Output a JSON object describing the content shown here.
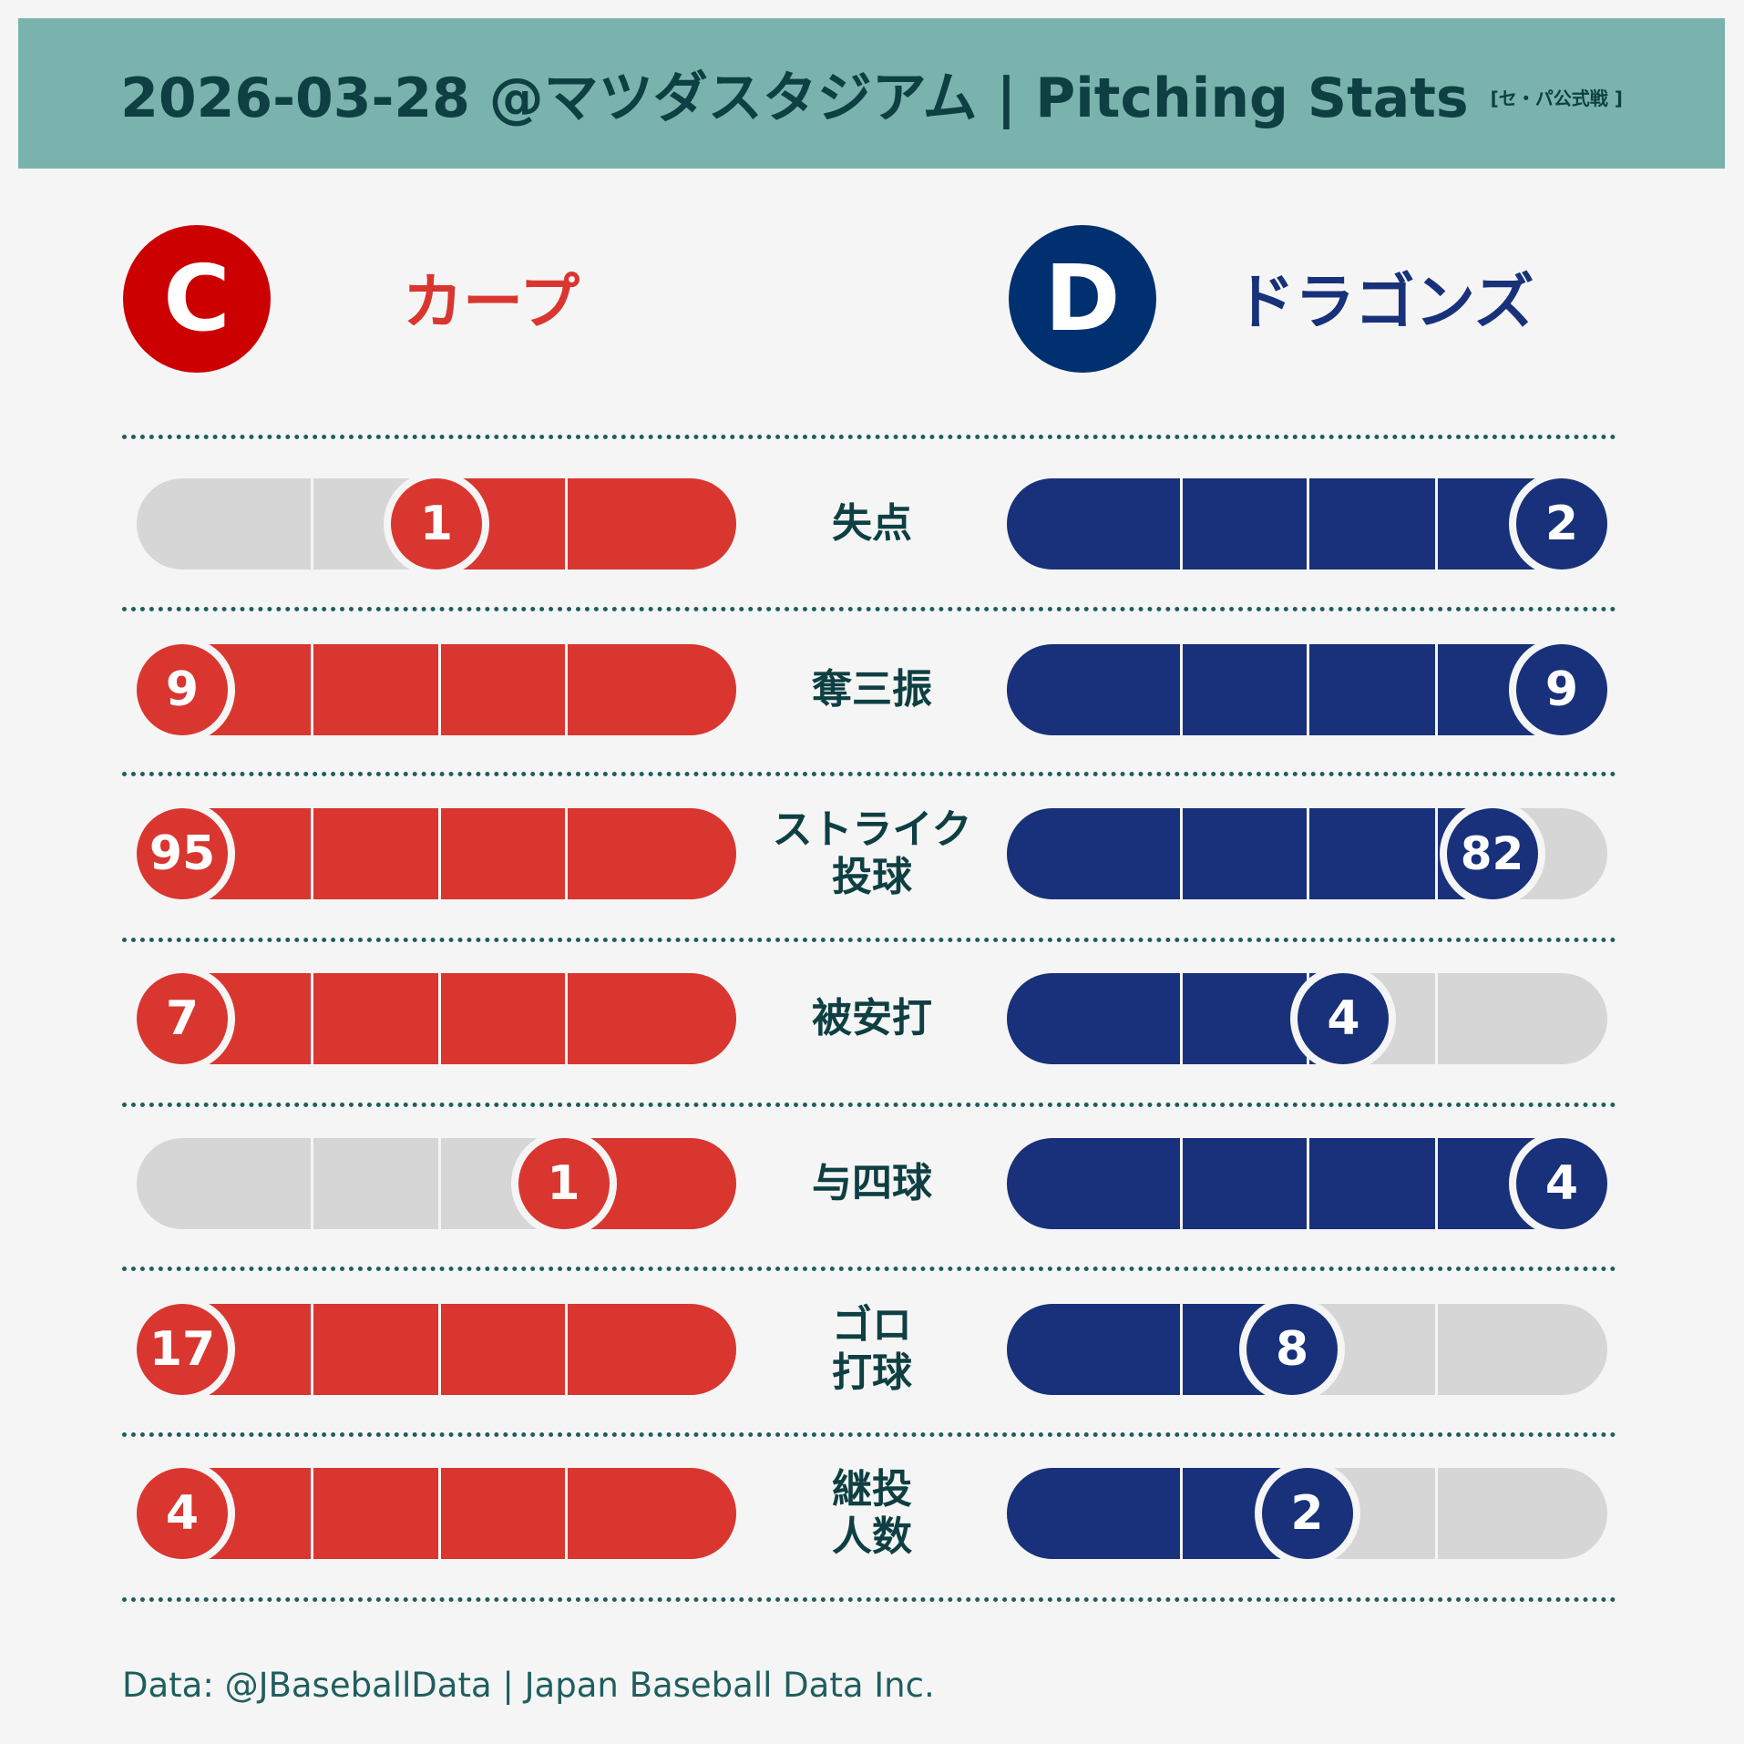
{
  "header": {
    "title": "2026-03-28  @マツダスタジアム | Pitching Stats",
    "subtitle": "[セ・パ公式戦 ]"
  },
  "teams": {
    "left": {
      "logo_letter": "C",
      "name": "カープ",
      "color": "#d93630",
      "logo_color": "#cc0000"
    },
    "right": {
      "logo_letter": "D",
      "name": "ドラゴンズ",
      "color": "#18317a",
      "logo_color": "#003070"
    }
  },
  "chart_data": {
    "type": "bar",
    "title": "Pitching Stats",
    "categories": [
      "失点",
      "奪三振",
      "ストライク\n投球",
      "被安打",
      "与四球",
      "ゴロ\n打球",
      "継投\n人数"
    ],
    "series": [
      {
        "name": "カープ",
        "values": [
          1,
          9,
          95,
          7,
          1,
          17,
          4
        ]
      },
      {
        "name": "ドラゴンズ",
        "values": [
          2,
          9,
          82,
          4,
          4,
          8,
          2
        ]
      }
    ]
  },
  "footer": "Data: @JBaseballData | Japan Baseball Data Inc."
}
